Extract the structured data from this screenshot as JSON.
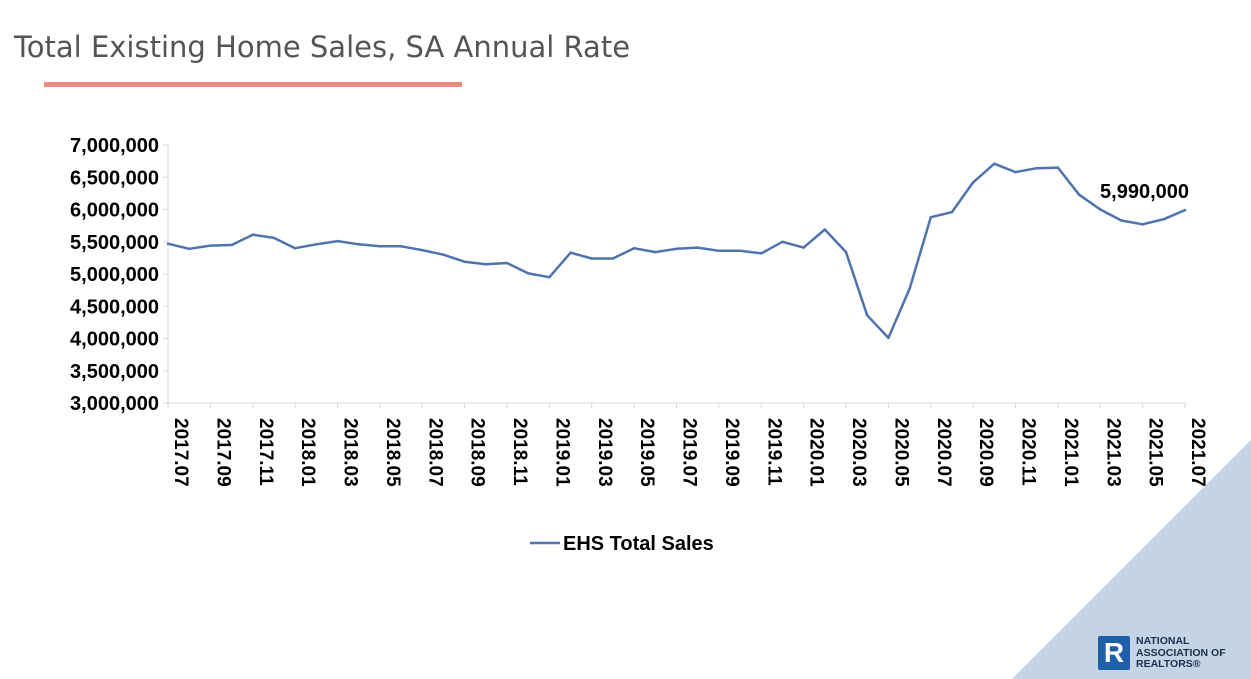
{
  "colors": {
    "title": "#555555",
    "underline": "#ec8a7f",
    "series_line": "#4f74ad",
    "axis_text": "#000000",
    "corner": "#c4d4e4",
    "logo_blue": "#1f5fa8"
  },
  "page": {
    "title": "Total Existing Home Sales, SA Annual Rate"
  },
  "logo": {
    "icon": "realtor-r-icon",
    "letter": "R",
    "line1": "NATIONAL",
    "line2": "ASSOCIATION OF",
    "line3": "REALTORS®"
  },
  "chart_data": {
    "type": "line",
    "title": "Total Existing Home Sales, SA Annual Rate",
    "xlabel": "",
    "ylabel": "",
    "ylim": [
      3000000,
      7000000
    ],
    "y_ticks": [
      3000000,
      3500000,
      4000000,
      4500000,
      5000000,
      5500000,
      6000000,
      6500000,
      7000000
    ],
    "y_tick_labels": [
      "3,000,000",
      "3,500,000",
      "4,000,000",
      "4,500,000",
      "5,000,000",
      "5,500,000",
      "6,000,000",
      "6,500,000",
      "7,000,000"
    ],
    "x": [
      "2017.07",
      "2017.08",
      "2017.09",
      "2017.10",
      "2017.11",
      "2017.12",
      "2018.01",
      "2018.02",
      "2018.03",
      "2018.04",
      "2018.05",
      "2018.06",
      "2018.07",
      "2018.08",
      "2018.09",
      "2018.10",
      "2018.11",
      "2018.12",
      "2019.01",
      "2019.02",
      "2019.03",
      "2019.04",
      "2019.05",
      "2019.06",
      "2019.07",
      "2019.08",
      "2019.09",
      "2019.10",
      "2019.11",
      "2019.12",
      "2020.01",
      "2020.02",
      "2020.03",
      "2020.04",
      "2020.05",
      "2020.06",
      "2020.07",
      "2020.08",
      "2020.09",
      "2020.10",
      "2020.11",
      "2020.12",
      "2021.01",
      "2021.02",
      "2021.03",
      "2021.04",
      "2021.05",
      "2021.06",
      "2021.07"
    ],
    "x_tick_labels": [
      "2017.07",
      "2017.09",
      "2017.11",
      "2018.01",
      "2018.03",
      "2018.05",
      "2018.07",
      "2018.09",
      "2018.11",
      "2019.01",
      "2019.03",
      "2019.05",
      "2019.07",
      "2019.09",
      "2019.11",
      "2020.01",
      "2020.03",
      "2020.05",
      "2020.07",
      "2020.09",
      "2020.11",
      "2021.01",
      "2021.03",
      "2021.05",
      "2021.07"
    ],
    "series": [
      {
        "name": "EHS Total Sales",
        "values": [
          5470000,
          5390000,
          5440000,
          5450000,
          5610000,
          5560000,
          5400000,
          5460000,
          5510000,
          5460000,
          5430000,
          5430000,
          5370000,
          5300000,
          5190000,
          5150000,
          5170000,
          5010000,
          4950000,
          5330000,
          5240000,
          5240000,
          5400000,
          5340000,
          5390000,
          5410000,
          5360000,
          5360000,
          5320000,
          5500000,
          5410000,
          5690000,
          5340000,
          4360000,
          4010000,
          4770000,
          5880000,
          5960000,
          6420000,
          6710000,
          6580000,
          6640000,
          6650000,
          6230000,
          6000000,
          5830000,
          5770000,
          5850000,
          5990000
        ]
      }
    ],
    "annotations": [
      {
        "label": "5,990,000",
        "x": "2021.07",
        "y": 5990000
      }
    ],
    "grid": false,
    "legend_placement": "bottom"
  }
}
